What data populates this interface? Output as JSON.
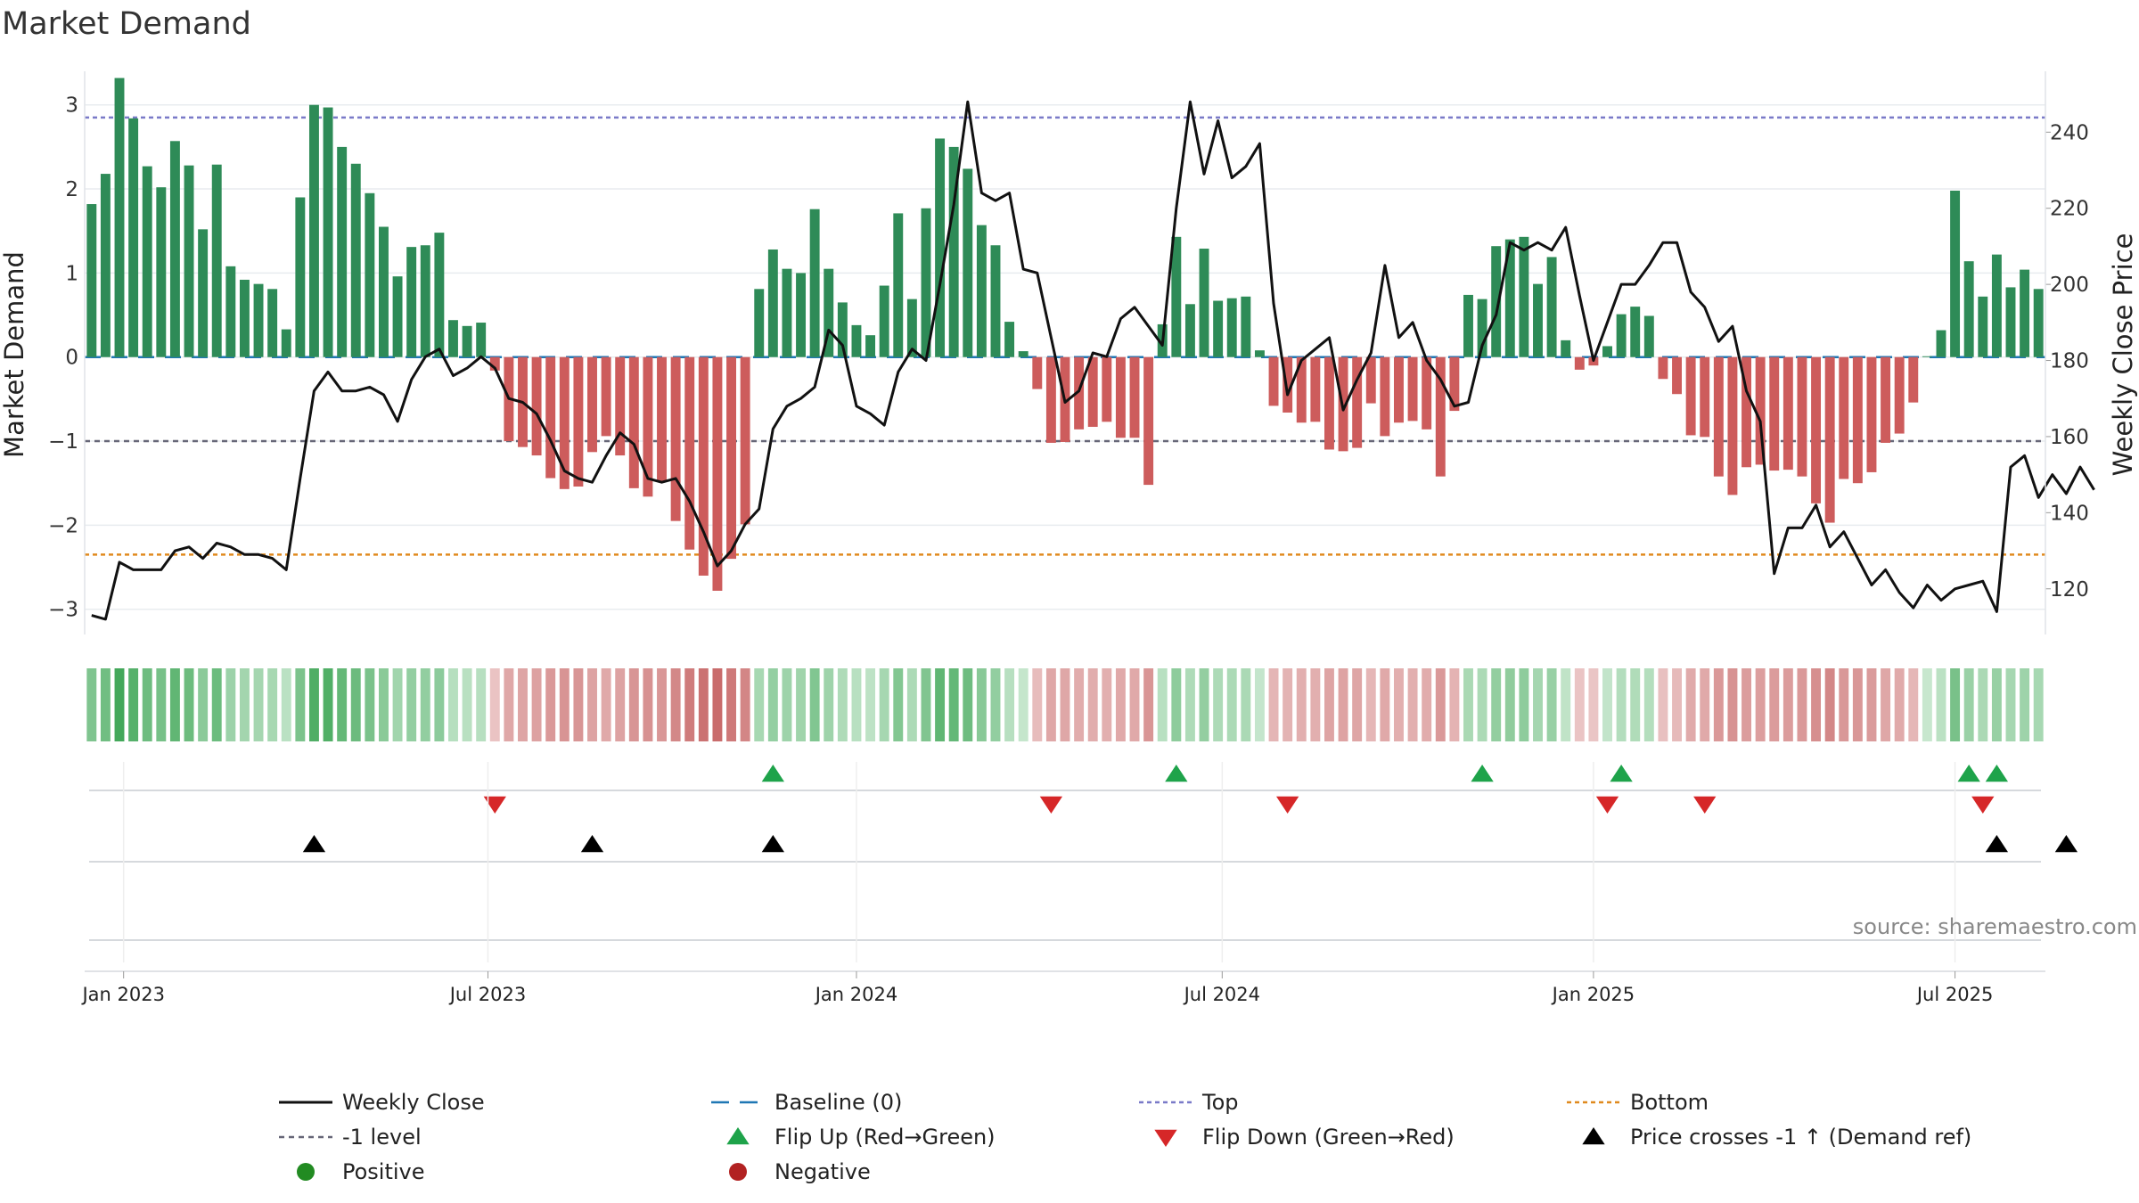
{
  "chart_data": {
    "type": "bar+line",
    "title": "Market Demand",
    "ylabel_left": "Market Demand",
    "ylabel_right": "Weekly Close Price",
    "source": "source: sharemaestro.com",
    "ylim_left": [
      -3.3,
      3.4
    ],
    "ylim_right": [
      108,
      256
    ],
    "left_ticks": [
      {
        "v": 3,
        "label": "3"
      },
      {
        "v": 2,
        "label": "2"
      },
      {
        "v": 1,
        "label": "1"
      },
      {
        "v": 0,
        "label": "0"
      },
      {
        "v": -1,
        "label": "−1"
      },
      {
        "v": -2,
        "label": "−2"
      },
      {
        "v": -3,
        "label": "−3"
      }
    ],
    "right_ticks": [
      {
        "v": 240,
        "label": "240"
      },
      {
        "v": 220,
        "label": "220"
      },
      {
        "v": 200,
        "label": "200"
      },
      {
        "v": 180,
        "label": "180"
      },
      {
        "v": 160,
        "label": "160"
      },
      {
        "v": 140,
        "label": "140"
      },
      {
        "v": 120,
        "label": "120"
      }
    ],
    "x_ticks": [
      {
        "week": 2.3,
        "label": "Jan 2023"
      },
      {
        "week": 28.5,
        "label": "Jul 2023"
      },
      {
        "week": 55,
        "label": "Jan 2024"
      },
      {
        "week": 81.3,
        "label": "Jul 2024"
      },
      {
        "week": 108,
        "label": "Jan 2025"
      },
      {
        "week": 134,
        "label": "Jul 2025"
      }
    ],
    "reference_lines": {
      "baseline": 0,
      "minus_one": -1,
      "top": 2.85,
      "bottom": -2.35
    },
    "demand": [
      1.82,
      2.18,
      3.32,
      2.84,
      2.27,
      2.02,
      2.57,
      2.28,
      1.52,
      2.29,
      1.08,
      0.92,
      0.87,
      0.81,
      0.33,
      1.9,
      3.0,
      2.97,
      2.5,
      2.3,
      1.95,
      1.55,
      0.96,
      1.31,
      1.33,
      1.48,
      0.44,
      0.37,
      0.41,
      -0.16,
      -1.0,
      -1.07,
      -1.17,
      -1.44,
      -1.57,
      -1.54,
      -1.13,
      -0.94,
      -1.17,
      -1.56,
      -1.66,
      -1.48,
      -1.95,
      -2.29,
      -2.6,
      -2.78,
      -2.4,
      -1.99,
      0.81,
      1.28,
      1.05,
      1.0,
      1.76,
      1.05,
      0.65,
      0.38,
      0.26,
      0.85,
      1.71,
      0.69,
      1.77,
      2.6,
      2.5,
      2.24,
      1.57,
      1.33,
      0.42,
      0.07,
      -0.38,
      -1.02,
      -1.01,
      -0.86,
      -0.83,
      -0.77,
      -0.96,
      -0.96,
      -1.52,
      0.39,
      1.43,
      0.63,
      1.29,
      0.67,
      0.7,
      0.72,
      0.08,
      -0.58,
      -0.66,
      -0.78,
      -0.77,
      -1.1,
      -1.12,
      -1.08,
      -0.55,
      -0.94,
      -0.78,
      -0.76,
      -0.86,
      -1.42,
      -0.64,
      0.74,
      0.69,
      1.32,
      1.4,
      1.43,
      0.87,
      1.19,
      0.2,
      -0.15,
      -0.1,
      0.13,
      0.51,
      0.6,
      0.49,
      -0.26,
      -0.44,
      -0.93,
      -0.95,
      -1.42,
      -1.64,
      -1.31,
      -1.28,
      -1.35,
      -1.34,
      -1.42,
      -1.74,
      -1.97,
      -1.45,
      -1.5,
      -1.37,
      -1.02,
      -0.91,
      -0.54,
      0.01,
      0.32,
      1.98,
      1.14,
      0.72,
      1.22,
      0.83,
      1.04,
      0.81
    ],
    "price": [
      113,
      112,
      127,
      125,
      125,
      125,
      130,
      131,
      128,
      132,
      131,
      129,
      129,
      128,
      125,
      149,
      172,
      177,
      172,
      172,
      173,
      171,
      164,
      175,
      181,
      183,
      176,
      178,
      181,
      178,
      170,
      169,
      166,
      159,
      151,
      149,
      148,
      155,
      161,
      158,
      149,
      148,
      149,
      143,
      135,
      126,
      130,
      137,
      141,
      162,
      168,
      170,
      173,
      188,
      184,
      168,
      166,
      163,
      177,
      183,
      180,
      200,
      221,
      248,
      224,
      222,
      224,
      204,
      203,
      186,
      169,
      172,
      182,
      181,
      191,
      194,
      189,
      184,
      220,
      248,
      229,
      243,
      228,
      231,
      237,
      195,
      171,
      180,
      183,
      186,
      167,
      175,
      182,
      205,
      186,
      190,
      180,
      175,
      168,
      169,
      184,
      192,
      211,
      209,
      211,
      209,
      215,
      197,
      180,
      190,
      200,
      200,
      205,
      211,
      211,
      198,
      194,
      185,
      189,
      172,
      164,
      124,
      136,
      136,
      142,
      131,
      135,
      128,
      121,
      125,
      119,
      115,
      121,
      117,
      120,
      121,
      122,
      114,
      152,
      155,
      144,
      150,
      145,
      152,
      146
    ],
    "flip_up_weeks": [
      49,
      78,
      100,
      110,
      135,
      137
    ],
    "flip_down_weeks": [
      29,
      69,
      86,
      109,
      116,
      136
    ],
    "price_cross_weeks": [
      16,
      36,
      49,
      137,
      142
    ],
    "legend": [
      {
        "key": "weekly-close",
        "label": "Weekly Close"
      },
      {
        "key": "baseline",
        "label": "Baseline (0)"
      },
      {
        "key": "top",
        "label": "Top"
      },
      {
        "key": "bottom",
        "label": "Bottom"
      },
      {
        "key": "minus-one",
        "label": "-1 level"
      },
      {
        "key": "flip-up",
        "label": "Flip Up (Red→Green)"
      },
      {
        "key": "flip-down",
        "label": "Flip Down (Green→Red)"
      },
      {
        "key": "price-cross",
        "label": "Price crosses -1 ↑ (Demand ref)"
      },
      {
        "key": "positive",
        "label": "Positive"
      },
      {
        "key": "negative",
        "label": "Negative"
      }
    ],
    "colors": {
      "positive_bar": "#2e8b57",
      "negative_bar": "#cd5c5c",
      "price_line": "#111111",
      "baseline": "#1f77b4",
      "top": "#7a7ac8",
      "bottom": "#e08a1e",
      "minus_one": "#666677",
      "flip_up": "#1ea34a",
      "flip_down": "#d62728",
      "price_cross": "#000000",
      "positive_dot": "#228b22",
      "negative_dot": "#b22222"
    }
  }
}
